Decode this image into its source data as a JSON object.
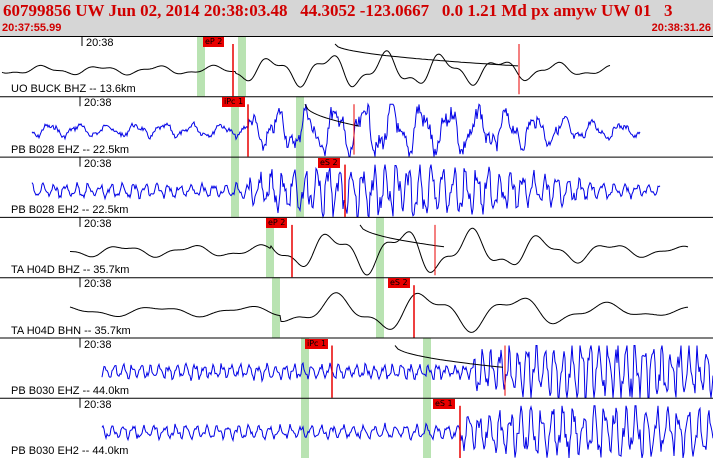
{
  "header": {
    "title": "60799856 UW Jun 02, 2014 20:38:03.48   44.3052 -123.0667   0.0 1.21 Md px amyw UW 01   3",
    "start_time": "20:37:55.99",
    "end_time": "20:38:31.26"
  },
  "colors": {
    "header_bg": "#d6d6d6",
    "header_text": "#d00000",
    "trace_black": "#000000",
    "trace_blue": "#0000e6",
    "pick_red": "#e80000",
    "window_green": "#b9e3b2"
  },
  "traces": [
    {
      "minute": "20:38",
      "label": "UO BUCK BHZ -- 13.6km",
      "picks": [
        "eP 2"
      ],
      "style": "black"
    },
    {
      "minute": "20:38",
      "label": "PB B028 EHZ -- 22.5km",
      "picks": [
        "iPc 1"
      ],
      "style": "blue"
    },
    {
      "minute": "20:38",
      "label": "PB B028 EH2 -- 22.5km",
      "picks": [
        "eS 2"
      ],
      "style": "blue"
    },
    {
      "minute": "20:38",
      "label": "TA H04D BHZ -- 35.7km",
      "picks": [
        "eP 2"
      ],
      "style": "black"
    },
    {
      "minute": "20:38",
      "label": "TA H04D BHN -- 35.7km",
      "picks": [
        "eS 2"
      ],
      "style": "black"
    },
    {
      "minute": "20:38",
      "label": "PB B030 EHZ -- 44.0km",
      "picks": [
        "iPc 1"
      ],
      "style": "blue"
    },
    {
      "minute": "20:38",
      "label": "PB B030 EH2 -- 44.0km",
      "picks": [
        "eS 1"
      ],
      "style": "blue"
    }
  ]
}
